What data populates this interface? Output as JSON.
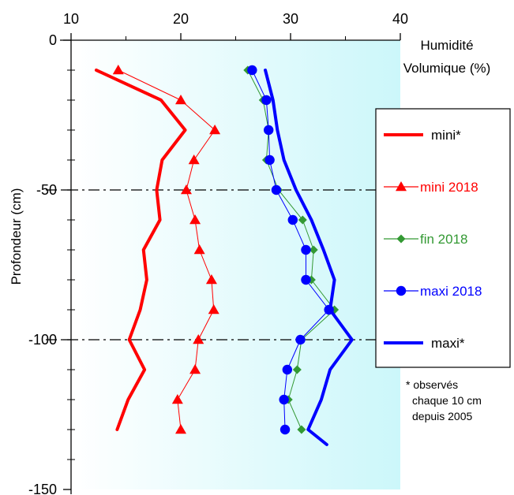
{
  "chart_data": {
    "type": "line",
    "title": "",
    "xlabel": [
      "Humidité",
      "Volumique  (%)"
    ],
    "ylabel": "Profondeur (cm)",
    "xlim": [
      10,
      40
    ],
    "ylim": [
      -150,
      0
    ],
    "xticks": [
      10,
      20,
      30,
      40
    ],
    "yticks": [
      0,
      -50,
      -100,
      -150
    ],
    "x_axis_position": "top",
    "reference_lines_y": [
      -50,
      -100
    ],
    "background_gradient": [
      "#ffffff",
      "#ccf7fa"
    ],
    "series": [
      {
        "name": "mini*",
        "color": "#ff0000",
        "marker": "none",
        "line_width": 4,
        "x": [
          12.3,
          18.2,
          20.4,
          18.3,
          17.8,
          18.1,
          16.6,
          16.9,
          16.3,
          15.3,
          16.7,
          15.2,
          14.2
        ],
        "y": [
          -10,
          -20,
          -30,
          -40,
          -50,
          -60,
          -70,
          -80,
          -90,
          -100,
          -110,
          -120,
          -130
        ]
      },
      {
        "name": "mini 2018",
        "color": "#ff0000",
        "marker": "triangle",
        "line_width": 1,
        "x": [
          14.3,
          20.0,
          23.1,
          21.2,
          20.5,
          21.3,
          21.7,
          22.8,
          23.0,
          21.6,
          21.3,
          19.7,
          20.0
        ],
        "y": [
          -10,
          -20,
          -30,
          -40,
          -50,
          -60,
          -70,
          -80,
          -90,
          -100,
          -110,
          -120,
          -130
        ]
      },
      {
        "name": "fin 2018",
        "color": "#339933",
        "marker": "diamond",
        "line_width": 1,
        "x": [
          26.1,
          27.5,
          28.0,
          27.8,
          28.9,
          31.1,
          32.1,
          31.9,
          34.0,
          31.0,
          30.6,
          29.8,
          31.0
        ],
        "y": [
          -10,
          -20,
          -30,
          -40,
          -50,
          -60,
          -70,
          -80,
          -90,
          -100,
          -110,
          -120,
          -130
        ]
      },
      {
        "name": "maxi 2018",
        "color": "#0000ff",
        "marker": "circle",
        "line_width": 1,
        "x": [
          26.5,
          27.8,
          28.0,
          28.1,
          28.7,
          30.2,
          31.4,
          31.4,
          33.5,
          30.9,
          29.7,
          29.4,
          29.5
        ],
        "y": [
          -10,
          -20,
          -30,
          -40,
          -50,
          -60,
          -70,
          -80,
          -90,
          -100,
          -110,
          -120,
          -130
        ]
      },
      {
        "name": "maxi*",
        "color": "#0000ff",
        "marker": "none",
        "line_width": 4,
        "x": [
          27.7,
          28.4,
          28.8,
          29.4,
          30.5,
          31.9,
          33.0,
          34.0,
          33.6,
          35.6,
          33.6,
          32.8,
          31.6,
          33.3
        ],
        "y": [
          -10,
          -20,
          -30,
          -40,
          -50,
          -60,
          -70,
          -80,
          -90,
          -100,
          -110,
          -120,
          -130,
          -135
        ]
      }
    ],
    "legend": {
      "placement": "right",
      "entries": [
        "mini*",
        "mini 2018",
        "fin 2018",
        "maxi 2018",
        "maxi*"
      ]
    },
    "annotation": [
      "* observés",
      "chaque  10 cm",
      "depuis 2005"
    ]
  }
}
